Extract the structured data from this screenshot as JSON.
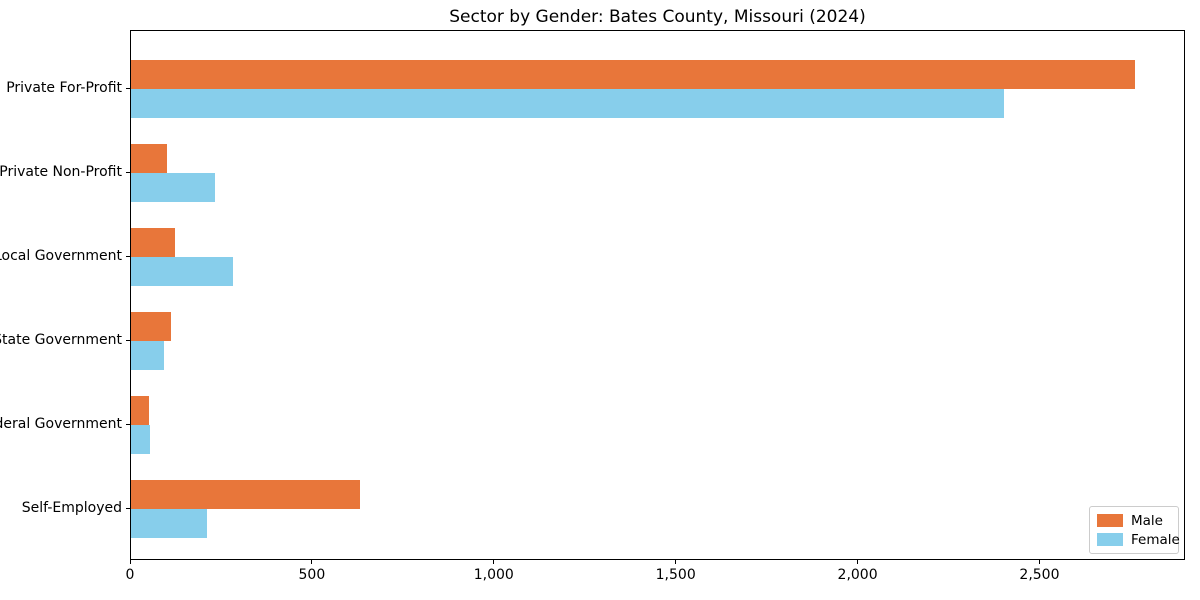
{
  "chart_data": {
    "type": "bar",
    "orientation": "horizontal",
    "title": "Sector by Gender: Bates County, Missouri (2024)",
    "categories": [
      "Private For-Profit",
      "Private Non-Profit",
      "Local Government",
      "State Government",
      "Federal Government",
      "Self-Employed"
    ],
    "series": [
      {
        "name": "Male",
        "color": "#e8763a",
        "values": [
          2760,
          100,
          120,
          110,
          50,
          630
        ]
      },
      {
        "name": "Female",
        "color": "#87ceeb",
        "values": [
          2400,
          230,
          280,
          90,
          52,
          210
        ]
      }
    ],
    "xlabel": "",
    "ylabel": "",
    "xlim": [
      0,
      2900
    ],
    "xticks": [
      {
        "value": 0,
        "label": "0"
      },
      {
        "value": 500,
        "label": "500"
      },
      {
        "value": 1000,
        "label": "1,000"
      },
      {
        "value": 1500,
        "label": "1,500"
      },
      {
        "value": 2000,
        "label": "2,000"
      },
      {
        "value": 2500,
        "label": "2,500"
      }
    ],
    "grid": false,
    "legend_position": "lower right",
    "frame": true
  }
}
